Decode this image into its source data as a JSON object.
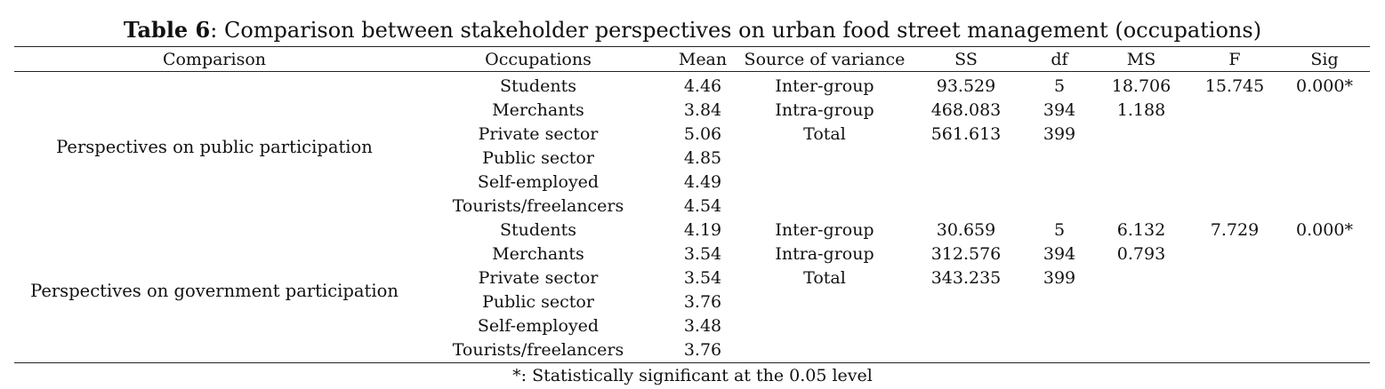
{
  "caption": {
    "label": "Table 6",
    "text": ": Comparison between stakeholder perspectives on urban food street management (occupations)"
  },
  "headers": [
    "Comparison",
    "Occupations",
    "Mean",
    "Source of variance",
    "SS",
    "df",
    "MS",
    "F",
    "Sig"
  ],
  "groups": [
    {
      "comparison": "Perspectives on public participation",
      "rows": [
        {
          "occupation": "Students",
          "mean": "4.46",
          "source": "Inter-group",
          "ss": "93.529",
          "df": "5",
          "ms": "18.706",
          "f": "15.745",
          "sig": "0.000*"
        },
        {
          "occupation": "Merchants",
          "mean": "3.84",
          "source": "Intra-group",
          "ss": "468.083",
          "df": "394",
          "ms": "1.188",
          "f": "",
          "sig": ""
        },
        {
          "occupation": "Private sector",
          "mean": "5.06",
          "source": "Total",
          "ss": "561.613",
          "df": "399",
          "ms": "",
          "f": "",
          "sig": ""
        },
        {
          "occupation": "Public sector",
          "mean": "4.85",
          "source": "",
          "ss": "",
          "df": "",
          "ms": "",
          "f": "",
          "sig": ""
        },
        {
          "occupation": "Self-employed",
          "mean": "4.49",
          "source": "",
          "ss": "",
          "df": "",
          "ms": "",
          "f": "",
          "sig": ""
        },
        {
          "occupation": "Tourists/freelancers",
          "mean": "4.54",
          "source": "",
          "ss": "",
          "df": "",
          "ms": "",
          "f": "",
          "sig": ""
        }
      ]
    },
    {
      "comparison": "Perspectives on government participation",
      "rows": [
        {
          "occupation": "Students",
          "mean": "4.19",
          "source": "Inter-group",
          "ss": "30.659",
          "df": "5",
          "ms": "6.132",
          "f": "7.729",
          "sig": "0.000*"
        },
        {
          "occupation": "Merchants",
          "mean": "3.54",
          "source": "Intra-group",
          "ss": "312.576",
          "df": "394",
          "ms": "0.793",
          "f": "",
          "sig": ""
        },
        {
          "occupation": "Private sector",
          "mean": "3.54",
          "source": "Total",
          "ss": "343.235",
          "df": "399",
          "ms": "",
          "f": "",
          "sig": ""
        },
        {
          "occupation": "Public sector",
          "mean": "3.76",
          "source": "",
          "ss": "",
          "df": "",
          "ms": "",
          "f": "",
          "sig": ""
        },
        {
          "occupation": "Self-employed",
          "mean": "3.48",
          "source": "",
          "ss": "",
          "df": "",
          "ms": "",
          "f": "",
          "sig": ""
        },
        {
          "occupation": "Tourists/freelancers",
          "mean": "3.76",
          "source": "",
          "ss": "",
          "df": "",
          "ms": "",
          "f": "",
          "sig": ""
        }
      ]
    }
  ],
  "footnote": "*: Statistically significant at the 0.05 level"
}
